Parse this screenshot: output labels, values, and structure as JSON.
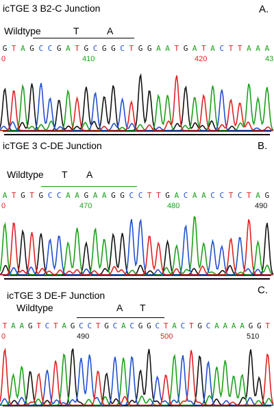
{
  "colors": {
    "A": "#1aa01a",
    "C": "#1f4fd0",
    "G": "#111111",
    "T": "#e0201e"
  },
  "panels": [
    {
      "id": "a",
      "title": "icTGE 3 B2-C Junction",
      "letter": "A.",
      "wildtype": "Wildtype",
      "wt_bases": [
        "T",
        "A"
      ],
      "sequence": "GTAGCCGATGCGGCTGGAATGATACTTAAA",
      "positions": [
        {
          "label": "0",
          "color": "#e0201e"
        },
        {
          "label": "410",
          "color": "#1aa01a"
        },
        {
          "label": "420",
          "color": "#e0201e"
        },
        {
          "label": "43",
          "color": "#1aa01a"
        }
      ]
    },
    {
      "id": "b",
      "title": "icTGE 3 C-DE Junction",
      "letter": "B.",
      "wildtype": "Wildtype",
      "wt_bases": [
        "T",
        "A"
      ],
      "sequence": "ATGTGCCAAGAAGGCCTTGACAACCTCTAG",
      "positions": [
        {
          "label": "0",
          "color": "#e0201e"
        },
        {
          "label": "470",
          "color": "#1aa01a"
        },
        {
          "label": "480",
          "color": "#1aa01a"
        },
        {
          "label": "490",
          "color": "#111111"
        }
      ]
    },
    {
      "id": "c",
      "title": "icTGE 3 DE-F Junction",
      "letter": "C.",
      "wildtype": "Wildtype",
      "wt_bases": [
        "A",
        "T"
      ],
      "sequence": "TAAGTCTAGCCTGCACGGCTACTGCAAAAGGT",
      "positions": [
        {
          "label": "0",
          "color": "#e0201e"
        },
        {
          "label": "490",
          "color": "#111111"
        },
        {
          "label": "500",
          "color": "#e0201e"
        },
        {
          "label": "510",
          "color": "#111111"
        }
      ]
    }
  ]
}
